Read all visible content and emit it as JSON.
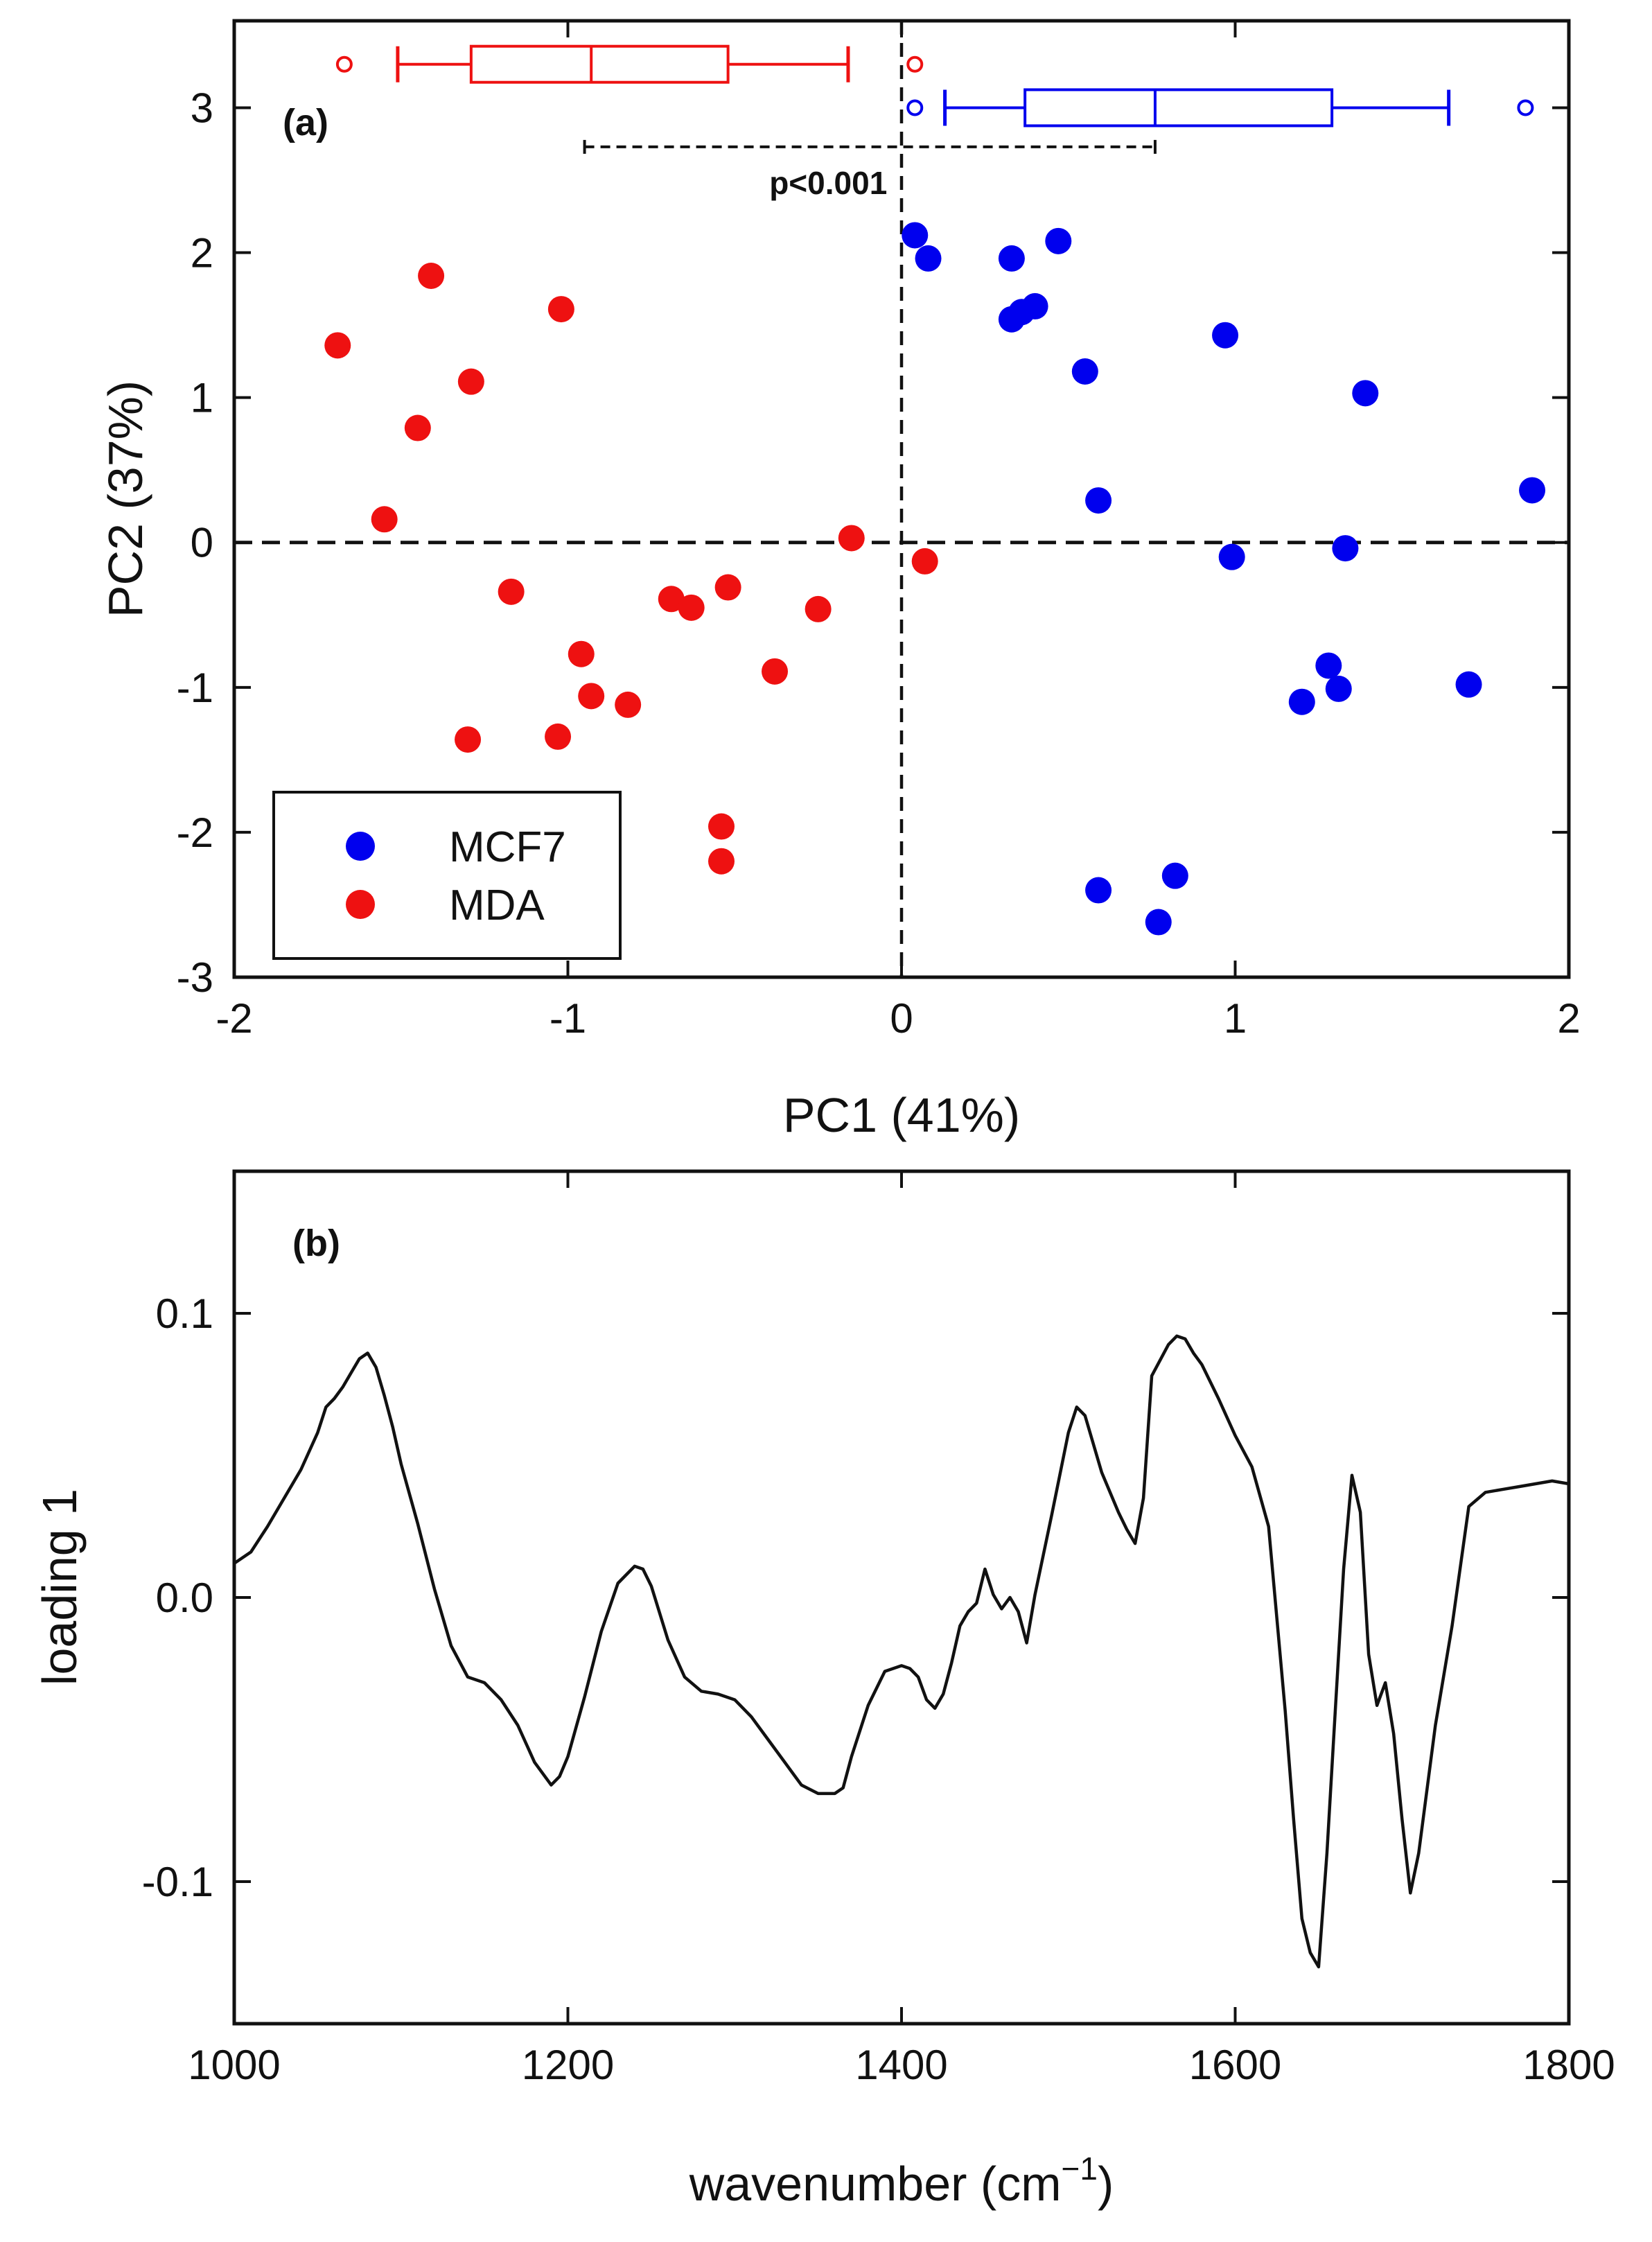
{
  "chart_data": [
    {
      "type": "scatter",
      "panel_label": "(a)",
      "xlabel": "PC1 (41%)",
      "ylabel": "PC2 (37%)",
      "xlim": [
        -2,
        2
      ],
      "ylim": [
        -3,
        3.6
      ],
      "xticks": [
        -2,
        -1,
        0,
        1,
        2
      ],
      "yticks": [
        -3,
        -2,
        -1,
        0,
        1,
        2,
        3
      ],
      "xtick_labels": [
        "-2",
        "-1",
        "0",
        "1",
        "2"
      ],
      "ytick_labels": [
        "-3",
        "-2",
        "-1",
        "0",
        "1",
        "2",
        "3"
      ],
      "zero_lines": {
        "x": 0,
        "y": 0,
        "style": "dashed"
      },
      "legend_position": "bottom-left",
      "series": [
        {
          "name": "MCF7",
          "color": "#0000ee",
          "points": [
            [
              0.04,
              2.12
            ],
            [
              0.08,
              1.96
            ],
            [
              0.33,
              1.96
            ],
            [
              0.47,
              2.08
            ],
            [
              0.33,
              1.54
            ],
            [
              0.36,
              1.59
            ],
            [
              0.4,
              1.63
            ],
            [
              0.55,
              1.18
            ],
            [
              0.97,
              1.43
            ],
            [
              1.39,
              1.03
            ],
            [
              0.59,
              0.29
            ],
            [
              1.89,
              0.36
            ],
            [
              0.99,
              -0.1
            ],
            [
              1.33,
              -0.04
            ],
            [
              1.28,
              -0.85
            ],
            [
              1.31,
              -1.01
            ],
            [
              1.2,
              -1.1
            ],
            [
              1.7,
              -0.98
            ],
            [
              0.59,
              -2.4
            ],
            [
              0.82,
              -2.3
            ],
            [
              0.77,
              -2.62
            ]
          ],
          "box": {
            "whisker_low": 0.13,
            "q1": 0.37,
            "median": 0.76,
            "q3": 1.29,
            "whisker_high": 1.64,
            "outliers": [
              0.04,
              1.87
            ],
            "y": 3.0
          }
        },
        {
          "name": "MDA",
          "color": "#ee1111",
          "points": [
            [
              -1.69,
              1.36
            ],
            [
              -1.41,
              1.84
            ],
            [
              -1.02,
              1.61
            ],
            [
              -1.29,
              1.11
            ],
            [
              -1.45,
              0.79
            ],
            [
              -1.55,
              0.16
            ],
            [
              -0.15,
              0.03
            ],
            [
              0.07,
              -0.13
            ],
            [
              -1.17,
              -0.34
            ],
            [
              -0.69,
              -0.39
            ],
            [
              -0.63,
              -0.45
            ],
            [
              -0.52,
              -0.31
            ],
            [
              -0.25,
              -0.46
            ],
            [
              -0.96,
              -0.77
            ],
            [
              -0.93,
              -1.06
            ],
            [
              -0.82,
              -1.12
            ],
            [
              -0.38,
              -0.89
            ],
            [
              -1.03,
              -1.34
            ],
            [
              -1.3,
              -1.36
            ],
            [
              -0.54,
              -1.96
            ],
            [
              -0.54,
              -2.2
            ]
          ],
          "box": {
            "whisker_low": -1.51,
            "q1": -1.29,
            "median": -0.93,
            "q3": -0.52,
            "whisker_high": -0.16,
            "outliers": [
              -1.67,
              0.04
            ],
            "y": 3.3
          }
        }
      ],
      "annotation": {
        "text": "p<0.001",
        "from_x": -0.95,
        "to_x": 0.76,
        "y": 2.73
      }
    },
    {
      "type": "line",
      "panel_label": "(b)",
      "xlabel": "wavenumber (cm",
      "xlabel_superscript": "−1",
      "xlabel_suffix": ")",
      "ylabel": "loading 1",
      "xlim": [
        1000,
        1800
      ],
      "ylim": [
        -0.15,
        0.15
      ],
      "xticks": [
        1000,
        1200,
        1400,
        1600,
        1800
      ],
      "yticks": [
        -0.1,
        0.0,
        0.1
      ],
      "xtick_labels": [
        "1000",
        "1200",
        "1400",
        "1600",
        "1800"
      ],
      "ytick_labels": [
        "-0.1",
        "0.0",
        "0.1"
      ],
      "color": "#111111",
      "x": [
        1000,
        1010,
        1020,
        1030,
        1040,
        1050,
        1055,
        1060,
        1065,
        1070,
        1075,
        1080,
        1085,
        1090,
        1095,
        1100,
        1110,
        1120,
        1130,
        1140,
        1150,
        1155,
        1160,
        1170,
        1180,
        1190,
        1195,
        1200,
        1210,
        1220,
        1230,
        1240,
        1245,
        1250,
        1260,
        1270,
        1280,
        1290,
        1300,
        1310,
        1320,
        1330,
        1340,
        1350,
        1360,
        1365,
        1370,
        1380,
        1390,
        1400,
        1405,
        1410,
        1415,
        1420,
        1425,
        1430,
        1435,
        1440,
        1445,
        1450,
        1455,
        1460,
        1465,
        1470,
        1475,
        1480,
        1490,
        1500,
        1505,
        1510,
        1520,
        1530,
        1535,
        1540,
        1545,
        1550,
        1560,
        1565,
        1570,
        1575,
        1580,
        1590,
        1600,
        1610,
        1620,
        1630,
        1635,
        1640,
        1645,
        1650,
        1655,
        1660,
        1665,
        1670,
        1675,
        1680,
        1685,
        1690,
        1695,
        1700,
        1705,
        1710,
        1720,
        1730,
        1740,
        1750,
        1760,
        1770,
        1780,
        1790,
        1800
      ],
      "y": [
        0.012,
        0.016,
        0.025,
        0.035,
        0.045,
        0.058,
        0.067,
        0.07,
        0.074,
        0.079,
        0.084,
        0.086,
        0.081,
        0.071,
        0.06,
        0.047,
        0.026,
        0.003,
        -0.017,
        -0.028,
        -0.03,
        -0.033,
        -0.036,
        -0.045,
        -0.058,
        -0.066,
        -0.063,
        -0.056,
        -0.035,
        -0.012,
        0.005,
        0.011,
        0.01,
        0.004,
        -0.015,
        -0.028,
        -0.033,
        -0.034,
        -0.036,
        -0.042,
        -0.05,
        -0.058,
        -0.066,
        -0.069,
        -0.069,
        -0.067,
        -0.056,
        -0.038,
        -0.026,
        -0.024,
        -0.025,
        -0.028,
        -0.036,
        -0.039,
        -0.034,
        -0.023,
        -0.01,
        -0.005,
        -0.002,
        0.01,
        0.001,
        -0.004,
        0.0,
        -0.005,
        -0.016,
        0.001,
        0.029,
        0.058,
        0.067,
        0.064,
        0.044,
        0.03,
        0.024,
        0.019,
        0.035,
        0.078,
        0.089,
        0.092,
        0.091,
        0.086,
        0.082,
        0.07,
        0.057,
        0.046,
        0.025,
        -0.04,
        -0.078,
        -0.113,
        -0.125,
        -0.13,
        -0.09,
        -0.04,
        0.01,
        0.043,
        0.03,
        -0.02,
        -0.038,
        -0.03,
        -0.048,
        -0.078,
        -0.104,
        -0.09,
        -0.045,
        -0.01,
        0.032,
        0.037,
        0.038,
        0.039,
        0.04,
        0.041,
        0.04
      ]
    }
  ]
}
